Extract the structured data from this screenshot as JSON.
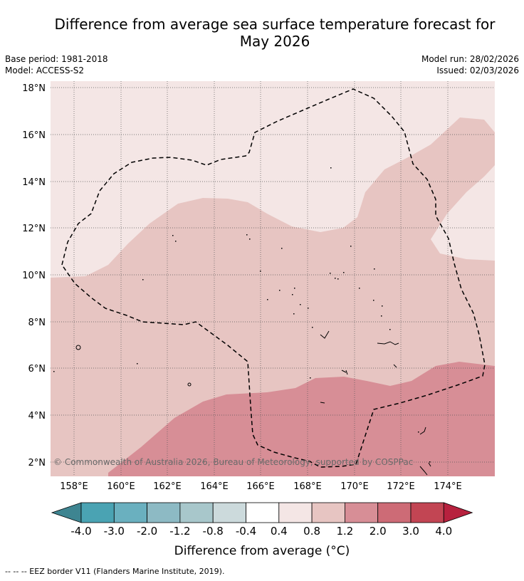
{
  "header": {
    "title_line1": "Difference from average sea surface temperature forecast for",
    "title_line2": "May 2026",
    "base_period": "Base period: 1981-2018",
    "model": "Model: ACCESS-S2",
    "model_run": "Model run: 28/02/2026",
    "issued": "Issued: 02/03/2026"
  },
  "map": {
    "lat_labels": [
      "18°N",
      "16°N",
      "14°N",
      "12°N",
      "10°N",
      "8°N",
      "6°N",
      "4°N",
      "2°N"
    ],
    "lon_labels": [
      "158°E",
      "160°E",
      "162°E",
      "164°E",
      "166°E",
      "168°E",
      "170°E",
      "172°E",
      "174°E"
    ],
    "copyright": "© Commonwealth of Australia 2026, Bureau of Meteorology, supported by COSPPac",
    "zone_colors": {
      "z04_08": "#f4e6e5",
      "z08_12": "#e7c5c2",
      "z12_20": "#d78e96"
    }
  },
  "colorbar": {
    "colors": [
      "#3e8591",
      "#4aa3b3",
      "#6ab0bf",
      "#8dbac4",
      "#a8c7cb",
      "#ccdadc",
      "#ffffff",
      "#f4e6e5",
      "#e7c5c2",
      "#d78e96",
      "#cd6b76",
      "#c24553",
      "#b7213e"
    ],
    "ticks": [
      "-4.0",
      "-3.0",
      "-2.0",
      "-1.2",
      "-0.8",
      "-0.4",
      "0.4",
      "0.8",
      "1.2",
      "2.0",
      "3.0",
      "4.0"
    ],
    "label": "Difference from average (°C)"
  },
  "footer": {
    "legend": "-- -- -- EEZ border V11 (Flanders Marine Institute, 2019)."
  }
}
